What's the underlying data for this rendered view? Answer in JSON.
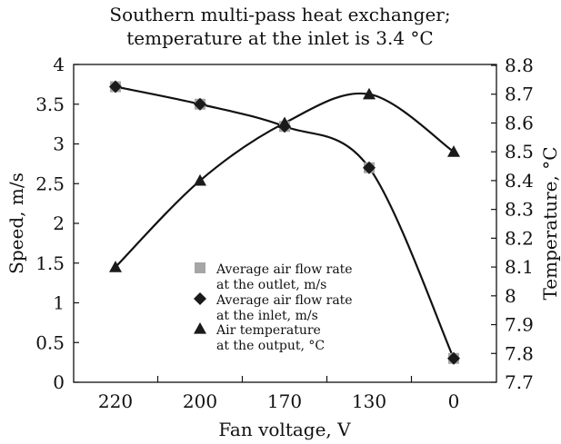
{
  "chart_data": {
    "type": "line",
    "title": "Southern multi-pass heat exchanger;",
    "subtitle": "temperature at the inlet is 3.4 °C",
    "xlabel": "Fan voltage, V",
    "ylabel": "Speed, m/s",
    "y2label": "Temperature, °C",
    "categories": [
      "220",
      "200",
      "170",
      "130",
      "0"
    ],
    "ylim": [
      0,
      4
    ],
    "yticks": [
      "0",
      "0.5",
      "1",
      "1.5",
      "2",
      "2.5",
      "3",
      "3.5",
      "4"
    ],
    "y2lim": [
      7.7,
      8.8
    ],
    "y2ticks": [
      "7.7",
      "7.8",
      "7.9",
      "8",
      "8.1",
      "8.2",
      "8.3",
      "8.4",
      "8.5",
      "8.6",
      "8.7",
      "8.8"
    ],
    "grid": false,
    "legend_position": "center-left",
    "series": [
      {
        "name": "Average air flow rate at the outlet, m/s",
        "legend_lines": [
          "Average air flow rate",
          "at the outlet, m/s"
        ],
        "marker": "square",
        "color": "#a6a6a6",
        "axis": "left",
        "values": [
          3.72,
          3.5,
          3.22,
          2.7,
          0.3
        ]
      },
      {
        "name": "Average air flow rate at the inlet, m/s",
        "legend_lines": [
          "Average air flow rate",
          "at the inlet, m/s"
        ],
        "marker": "diamond",
        "color": "#1a1a1a",
        "axis": "left",
        "values": [
          3.72,
          3.5,
          3.22,
          2.7,
          0.3
        ]
      },
      {
        "name": "Air temperature at the output, °C",
        "legend_lines": [
          "Air temperature",
          "at the output, °C"
        ],
        "marker": "triangle",
        "color": "#1a1a1a",
        "axis": "right",
        "values": [
          8.1,
          8.4,
          8.6,
          8.7,
          8.5
        ]
      }
    ]
  }
}
